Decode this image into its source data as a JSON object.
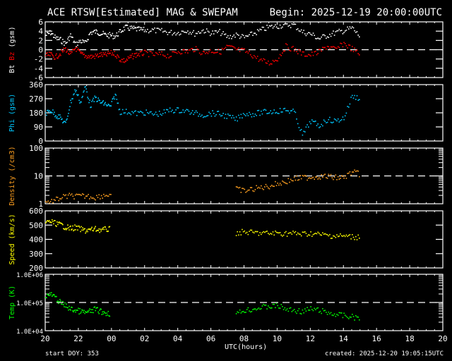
{
  "header": {
    "title": "ACE RTSW[Estimated] MAG & SWEPAM",
    "begin": "Begin: 2025-12-19 20:00:00UTC"
  },
  "footer": {
    "start_doy": "start DOY: 353",
    "created": "created: 2025-12-20 19:05:15UTC",
    "xlabel": "UTC(hours)"
  },
  "colors": {
    "bt": "#ffffff",
    "bz": "#ff0000",
    "phi": "#00c8ff",
    "density": "#ffa020",
    "speed": "#ffff00",
    "temp": "#00ff00",
    "axis": "#ffffff",
    "background": "#000000"
  },
  "chart_data": [
    {
      "type": "scatter",
      "title": "Bt / Bz (gsm)",
      "ylabel": "Bt Bz (gsm)",
      "ylabel_parts": [
        "Bt",
        "Bz",
        "(gsm)"
      ],
      "yticks": [
        "6",
        "4",
        "2",
        "0",
        "-2",
        "-4",
        "-6"
      ],
      "ylim": [
        -6,
        6
      ],
      "reference_line": 0,
      "xlabel": "UTC(hours)",
      "xticks": [
        "20",
        "22",
        "00",
        "02",
        "04",
        "06",
        "08",
        "10",
        "12",
        "14",
        "16",
        "18",
        "20"
      ],
      "xlim_hours": [
        0,
        24
      ],
      "series": [
        {
          "name": "Bt",
          "color": "#ffffff",
          "x": [
            0,
            0.3,
            0.6,
            0.9,
            1.2,
            1.5,
            1.8,
            2.1,
            2.4,
            2.7,
            3.0,
            3.3,
            3.6,
            3.9,
            4.2,
            4.5,
            4.8,
            5.1,
            5.4,
            5.7,
            6,
            6.5,
            7,
            7.5,
            8,
            8.5,
            9,
            9.5,
            10,
            10.5,
            11,
            11.5,
            12,
            12.5,
            13,
            13.5,
            14,
            14.5,
            15,
            15.5,
            16,
            16.5,
            17,
            17.5,
            18,
            18.5,
            19
          ],
          "y": [
            3.2,
            3.8,
            2.6,
            2.2,
            1.4,
            3.2,
            1.2,
            2.0,
            1.5,
            3.8,
            4.0,
            3.7,
            3.3,
            3.2,
            3.0,
            4.0,
            4.9,
            4.7,
            4.6,
            4.4,
            4.3,
            4.3,
            4.1,
            3.8,
            3.8,
            4.3,
            3.6,
            4.3,
            3.7,
            3.9,
            2.8,
            3.3,
            2.7,
            3.5,
            4.3,
            5.0,
            5.2,
            5.5,
            5.4,
            3.9,
            3.5,
            2.5,
            3.2,
            3.8,
            4.2,
            4.8,
            2.8
          ]
        },
        {
          "name": "Bz",
          "color": "#ff0000",
          "x": [
            0,
            0.3,
            0.6,
            0.9,
            1.2,
            1.5,
            1.8,
            2.1,
            2.4,
            2.7,
            3.0,
            3.3,
            3.6,
            3.9,
            4.2,
            4.5,
            4.8,
            5.1,
            5.4,
            5.7,
            6,
            6.5,
            7,
            7.5,
            8,
            8.5,
            9,
            9.5,
            10,
            10.5,
            11,
            11.5,
            12,
            12.5,
            13,
            13.5,
            14,
            14.5,
            15,
            15.5,
            16,
            16.5,
            17,
            17.5,
            18,
            18.5,
            19
          ],
          "y": [
            -1.2,
            -1.0,
            -1.5,
            -0.6,
            0.3,
            -1.0,
            0.5,
            -0.8,
            -1.2,
            -1.4,
            -1.3,
            -1.0,
            -1.1,
            -0.6,
            -0.8,
            -2.0,
            -2.3,
            -1.6,
            -1.0,
            -0.8,
            -0.6,
            -1.0,
            -0.9,
            -1.2,
            -0.2,
            -0.3,
            0.3,
            -0.6,
            -0.1,
            -0.4,
            0.8,
            0.1,
            -0.2,
            -1.1,
            -2.2,
            -2.8,
            -1.8,
            0.8,
            0.2,
            -0.8,
            -1.0,
            -0.4,
            0.9,
            0.1,
            1.5,
            0.3,
            -1.0
          ]
        }
      ]
    },
    {
      "type": "scatter",
      "title": "Phi (gsm)",
      "ylabel": "Phi (gsm)",
      "yticks": [
        "360",
        "270",
        "180",
        "90",
        "0"
      ],
      "ylim": [
        0,
        360
      ],
      "series": [
        {
          "name": "Phi",
          "color": "#00c8ff",
          "x": [
            0,
            0.3,
            0.6,
            0.9,
            1.2,
            1.5,
            1.8,
            2.1,
            2.4,
            2.7,
            3.0,
            3.3,
            3.6,
            3.9,
            4.2,
            4.5,
            5,
            5.5,
            6,
            6.5,
            7,
            7.5,
            8,
            8.5,
            9,
            9.5,
            10,
            10.5,
            11,
            11.5,
            12,
            12.5,
            13,
            13.5,
            14,
            14.5,
            15,
            15.5,
            16,
            16.5,
            17,
            17.5,
            18,
            18.5,
            19
          ],
          "y": [
            180,
            200,
            170,
            150,
            110,
            250,
            330,
            250,
            350,
            230,
            280,
            250,
            240,
            220,
            300,
            190,
            190,
            180,
            185,
            175,
            180,
            200,
            200,
            195,
            180,
            170,
            180,
            175,
            160,
            140,
            180,
            175,
            185,
            190,
            195,
            200,
            190,
            40,
            130,
            100,
            140,
            130,
            150,
            290,
            275
          ]
        }
      ]
    },
    {
      "type": "scatter",
      "title": "Density (/cm3)",
      "ylabel": "Density (/cm3)",
      "yscale": "log",
      "yticks": [
        "100",
        "10",
        "1"
      ],
      "ylim": [
        1,
        100
      ],
      "reference_line": 10,
      "series": [
        {
          "name": "Density",
          "color": "#ffa020",
          "x": [
            0,
            0.5,
            1,
            1.5,
            2,
            2.5,
            3,
            3.5,
            4,
            11.5,
            12,
            12.5,
            13,
            13.5,
            14,
            14.5,
            15,
            15.5,
            16,
            16.5,
            17,
            17.5,
            18,
            18.5,
            19
          ],
          "y": [
            1.2,
            1.3,
            1.8,
            2.0,
            1.9,
            2.0,
            1.8,
            2.1,
            2.3,
            3.5,
            3.0,
            3.5,
            4.0,
            4.5,
            5.5,
            6.5,
            8.0,
            9.0,
            9.5,
            10.0,
            10.0,
            9.0,
            9.0,
            14.0,
            12.0
          ]
        }
      ]
    },
    {
      "type": "scatter",
      "title": "Speed (km/s)",
      "ylabel": "Speed (km/s)",
      "yticks": [
        "600",
        "500",
        "400",
        "300",
        "200"
      ],
      "ylim": [
        200,
        600
      ],
      "series": [
        {
          "name": "Speed",
          "color": "#ffff00",
          "x": [
            0,
            0.3,
            0.6,
            0.9,
            1.2,
            1.5,
            1.8,
            2.1,
            2.4,
            2.7,
            3.0,
            3.3,
            3.6,
            3.9,
            11.5,
            12,
            12.5,
            13,
            13.5,
            14,
            14.5,
            15,
            15.5,
            16,
            16.5,
            17,
            17.5,
            18,
            18.5,
            19
          ],
          "y": [
            520,
            530,
            515,
            505,
            490,
            480,
            485,
            475,
            465,
            470,
            475,
            470,
            472,
            475,
            450,
            455,
            450,
            448,
            445,
            448,
            445,
            445,
            440,
            445,
            438,
            432,
            428,
            426,
            422,
            420
          ]
        }
      ]
    },
    {
      "type": "scatter",
      "title": "Temp (K)",
      "ylabel": "Temp (K)",
      "yscale": "log",
      "yticks": [
        "1.0E+06",
        "1.0E+05",
        "1.0E+04"
      ],
      "ylim": [
        10000,
        1000000
      ],
      "reference_line": 100000,
      "series": [
        {
          "name": "Temp",
          "color": "#00ff00",
          "x": [
            0,
            0.3,
            0.6,
            0.9,
            1.2,
            1.5,
            1.8,
            2.1,
            2.4,
            2.7,
            3.0,
            3.3,
            3.6,
            3.9,
            11.5,
            12,
            12.5,
            13,
            13.5,
            14,
            14.5,
            15,
            15.5,
            16,
            16.5,
            17,
            17.5,
            18,
            18.5,
            19
          ],
          "y": [
            180000,
            200000,
            150000,
            100000,
            80000,
            60000,
            55000,
            50000,
            45000,
            50000,
            60000,
            50000,
            45000,
            42000,
            40000,
            55000,
            60000,
            70000,
            75000,
            80000,
            60000,
            55000,
            50000,
            60000,
            55000,
            45000,
            40000,
            35000,
            32000,
            30000
          ]
        }
      ]
    }
  ]
}
